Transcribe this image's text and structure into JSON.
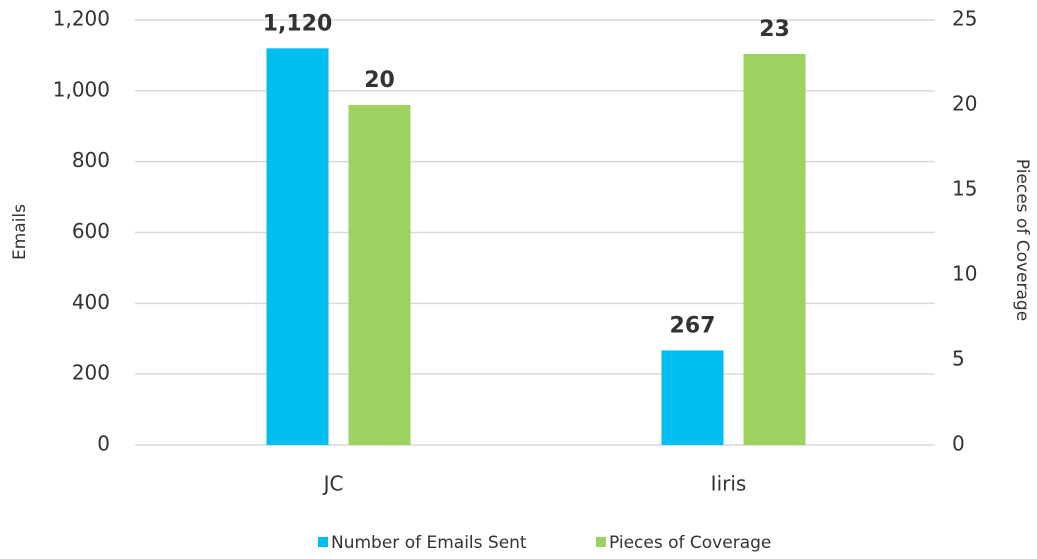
{
  "chart_data": {
    "type": "bar",
    "categories": [
      "JC",
      "Iiris"
    ],
    "series": [
      {
        "name": "Number of Emails Sent",
        "color": "#00bdf2",
        "values": [
          1120,
          267
        ],
        "value_labels": [
          "1,120",
          "267"
        ]
      },
      {
        "name": "Pieces of Coverage",
        "color": "#9dd160",
        "values": [
          20,
          23
        ],
        "axis": "y2"
      }
    ],
    "ylabel": "Emails",
    "y2label": "Pieces of Coverage",
    "ylim": [
      0,
      1200
    ],
    "yticks": [
      0,
      200,
      400,
      600,
      800,
      {
        "value": 1000,
        "label": "1,000"
      },
      {
        "value": 1200,
        "label": "1,200"
      }
    ],
    "y2lim": [
      0,
      25
    ],
    "y2ticks": [
      0,
      5,
      10,
      15,
      20,
      25
    ],
    "grid": true,
    "legend": "bottom"
  }
}
